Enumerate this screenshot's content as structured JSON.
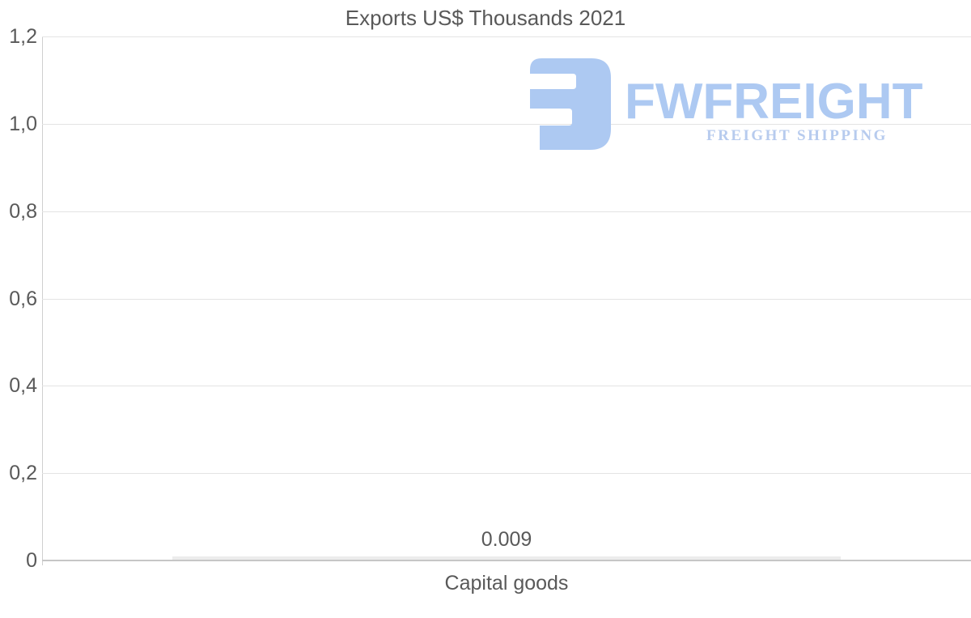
{
  "chart_data": {
    "type": "bar",
    "title": "Exports US$ Thousands 2021",
    "categories": [
      "Capital goods"
    ],
    "series": [
      {
        "name": "Exports US$ Thousands 2021",
        "values": [
          0.009
        ]
      }
    ],
    "value_labels": [
      "0.009"
    ],
    "xlabel": "",
    "ylabel": "",
    "ylim": [
      0,
      1.2
    ],
    "yticks": [
      {
        "value": 1.2,
        "label": "1,2"
      },
      {
        "value": 1.0,
        "label": "1,0"
      },
      {
        "value": 0.8,
        "label": "0,8"
      },
      {
        "value": 0.6,
        "label": "0,6"
      },
      {
        "value": 0.4,
        "label": "0,4"
      },
      {
        "value": 0.2,
        "label": "0,2"
      },
      {
        "value": 0.0,
        "label": "0"
      }
    ],
    "grid": true,
    "legend_position": "none",
    "colors": {
      "bar_fill": "#ececec",
      "grid_line": "#e4e4e4",
      "axis_line": "#c6c6c6",
      "text": "#595959"
    }
  },
  "watermark": {
    "brand": "FWFREIGHT",
    "tagline": "FREIGHT SHIPPING",
    "icon": "fwfreight-logo-icon",
    "colors": {
      "icon_fill": "#adc9f2",
      "brand_text": "#adc9f2",
      "tagline_text": "#b7cbee"
    }
  }
}
